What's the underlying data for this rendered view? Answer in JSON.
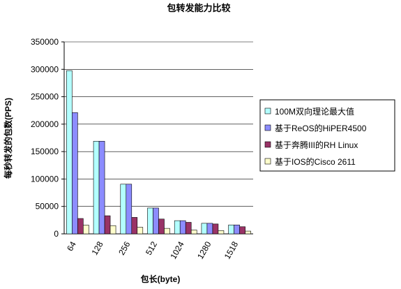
{
  "chart_data": {
    "type": "bar",
    "title": "包转发能力比较",
    "y_label": "每秒转发的包数(PPS)",
    "x_label": "包长(byte)",
    "categories": [
      "64",
      "128",
      "256",
      "512",
      "1024",
      "1280",
      "1518"
    ],
    "series": [
      {
        "name": "100M双向理论最大值",
        "color": "#b3ffff",
        "values": [
          297619,
          168919,
          90580,
          47170,
          24038,
          19231,
          16255
        ]
      },
      {
        "name": "基于ReOS的HiPER4500",
        "color": "#8c8cff",
        "values": [
          221000,
          168919,
          90580,
          47170,
          24038,
          19231,
          16255
        ]
      },
      {
        "name": "基于奔腾III的RH Linux",
        "color": "#993366",
        "values": [
          28000,
          33000,
          30000,
          27000,
          21000,
          18000,
          13000
        ]
      },
      {
        "name": "基于IOS的Cisco 2611",
        "color": "#ffffcc",
        "values": [
          16000,
          15000,
          12000,
          10000,
          7000,
          6000,
          5000
        ]
      }
    ],
    "ylim": [
      0,
      350000
    ],
    "yticks": [
      0,
      50000,
      100000,
      150000,
      200000,
      250000,
      300000,
      350000
    ],
    "grid": true
  }
}
